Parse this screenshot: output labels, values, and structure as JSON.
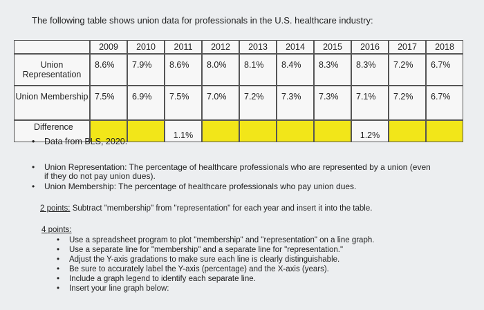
{
  "intro": "The following table shows union data for professionals in the U.S. healthcare industry:",
  "table": {
    "years": [
      "2009",
      "2010",
      "2011",
      "2012",
      "2013",
      "2014",
      "2015",
      "2016",
      "2017",
      "2018"
    ],
    "rows": [
      {
        "label": "Union Representation",
        "values": [
          "8.6%",
          "7.9%",
          "8.6%",
          "8.0%",
          "8.1%",
          "8.4%",
          "8.3%",
          "8.3%",
          "7.2%",
          "6.7%"
        ]
      },
      {
        "label": "Union Membership",
        "values": [
          "7.5%",
          "6.9%",
          "7.5%",
          "7.0%",
          "7.2%",
          "7.3%",
          "7.3%",
          "7.1%",
          "7.2%",
          "6.7%"
        ]
      },
      {
        "label": "Difference",
        "values": [
          null,
          null,
          "1.1%",
          null,
          null,
          null,
          null,
          "1.2%",
          null,
          null
        ]
      }
    ]
  },
  "source": "Data from BLS, 2020.",
  "definitions": [
    "Union Representation: The percentage of healthcare professionals who are represented by a union (even if they do not pay union dues).",
    "Union Membership: The percentage of healthcare professionals who pay union dues."
  ],
  "task1": {
    "label": "2 points:",
    "text": "Subtract \"membership\" from \"representation\" for each year and insert it into the table."
  },
  "task2": {
    "label": "4 points:",
    "items": [
      "Use a spreadsheet program to plot \"membership\" and \"representation\" on a line graph.",
      "Use a separate line for \"membership\" and a separate line for \"representation.\"",
      "Adjust the Y-axis gradations to make sure each line is clearly distinguishable.",
      "Be sure to accurately label the Y-axis (percentage) and the X-axis (years).",
      "Include a graph legend to identify each separate line.",
      "Insert your line graph below:"
    ]
  }
}
